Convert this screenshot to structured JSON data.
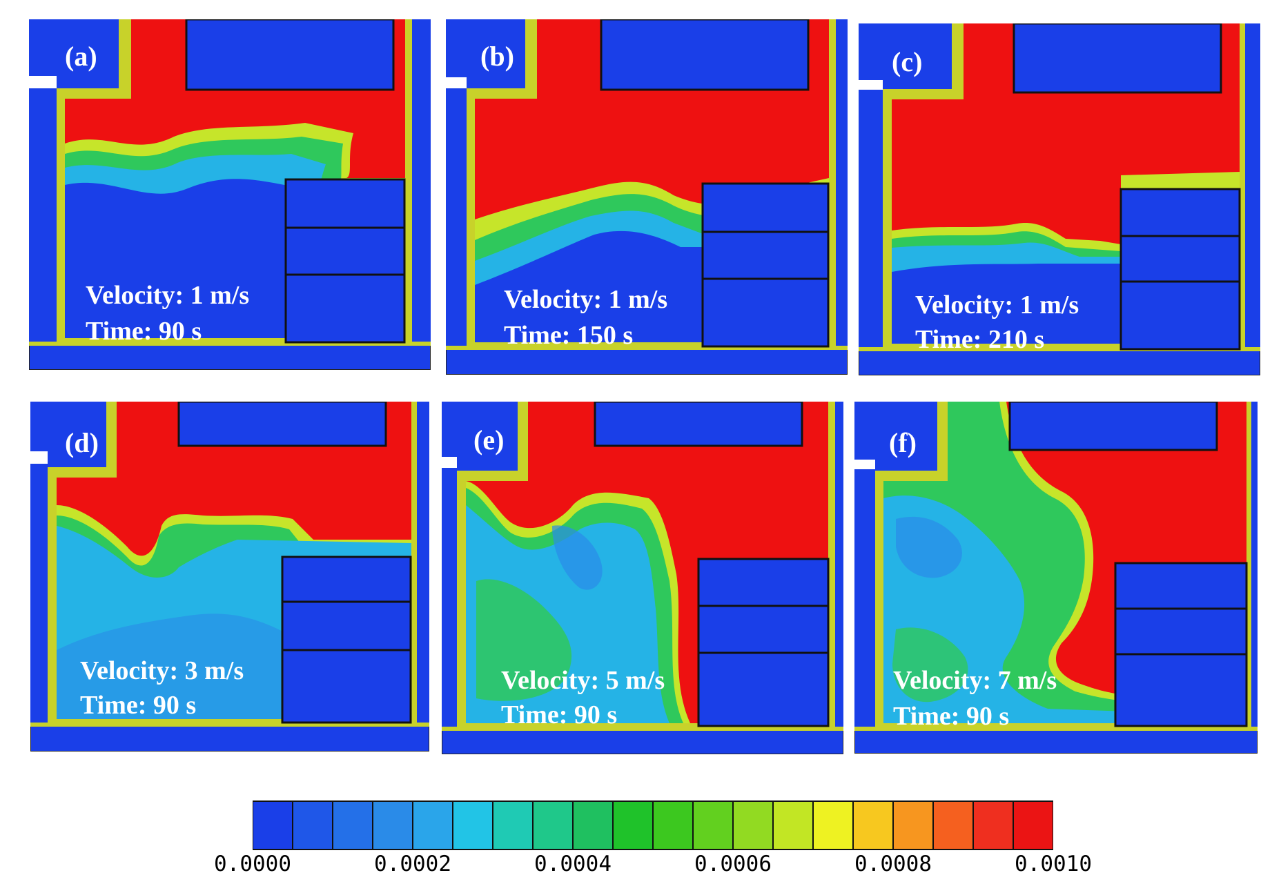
{
  "panels": [
    {
      "label": "(a)",
      "velocity": "Velocity: 1 m/s",
      "time": "Time: 90 s"
    },
    {
      "label": "(b)",
      "velocity": "Velocity: 1 m/s",
      "time": "Time: 150 s"
    },
    {
      "label": "(c)",
      "velocity": "Velocity: 1 m/s",
      "time": "Time: 210 s"
    },
    {
      "label": "(d)",
      "velocity": "Velocity: 3 m/s",
      "time": "Time: 90 s"
    },
    {
      "label": "(e)",
      "velocity": "Velocity: 5 m/s",
      "time": "Time: 90 s"
    },
    {
      "label": "(f)",
      "velocity": "Velocity: 7 m/s",
      "time": "Time: 90 s"
    }
  ],
  "colorbar": {
    "ticks": [
      "0.0000",
      "0.0002",
      "0.0004",
      "0.0006",
      "0.0008",
      "0.0010"
    ],
    "colors": [
      "#1a3fe8",
      "#1f57e8",
      "#2470e8",
      "#2a8be8",
      "#2aa5ea",
      "#22c4e6",
      "#1fcab4",
      "#1fc88a",
      "#1fc060",
      "#1fc22a",
      "#3cc81f",
      "#62d01f",
      "#92da22",
      "#c2e624",
      "#eef222",
      "#f7c81f",
      "#f7961f",
      "#f5601f",
      "#ef2f1f",
      "#eb1414"
    ]
  },
  "colors": {
    "high": "#ee1111",
    "low": "#1a3fe8",
    "wall": "#c8d22a",
    "outline": "#111111"
  }
}
